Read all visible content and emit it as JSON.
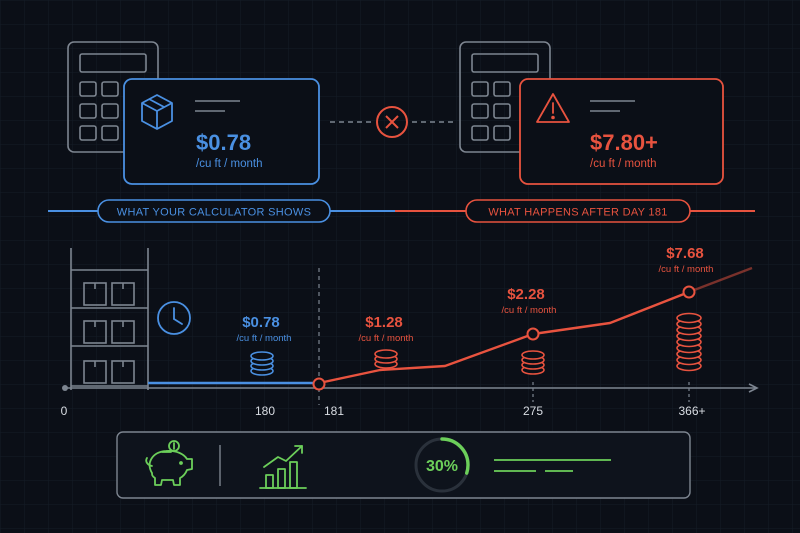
{
  "colors": {
    "background": "#0b0f17",
    "grid": "#151c27",
    "blue": "#4a90e2",
    "red": "#e8533f",
    "green": "#6ccf5a",
    "gray": "#7d8590",
    "text_light": "#d9dde3"
  },
  "top": {
    "left_card": {
      "icon": "box-icon",
      "price": "$0.78",
      "unit": "/cu ft / month"
    },
    "right_card": {
      "icon": "warning-icon",
      "price": "$7.80+",
      "unit": "/cu ft / month"
    },
    "connector_icon": "x-circle-icon"
  },
  "banner": {
    "left_label": "WHAT YOUR CALCULATOR SHOWS",
    "right_label": "WHAT HAPPENS AFTER DAY 181"
  },
  "timeline": {
    "ticks": [
      "0",
      "180",
      "181",
      "275",
      "366+"
    ],
    "icons": [
      "shelving-icon",
      "clock-icon",
      "coin-stack-icon"
    ],
    "labels": [
      {
        "price": "$0.78",
        "unit": "/cu ft / month"
      },
      {
        "price": "$1.28",
        "unit": "/cu ft / month"
      },
      {
        "price": "$2.28",
        "unit": "/cu ft / month"
      },
      {
        "price": "$7.68",
        "unit": "/cu ft / month"
      }
    ]
  },
  "bottom": {
    "icons": [
      "piggy-bank-icon",
      "growth-chart-icon"
    ],
    "percent_label": "30%",
    "percent_value": 30
  }
}
